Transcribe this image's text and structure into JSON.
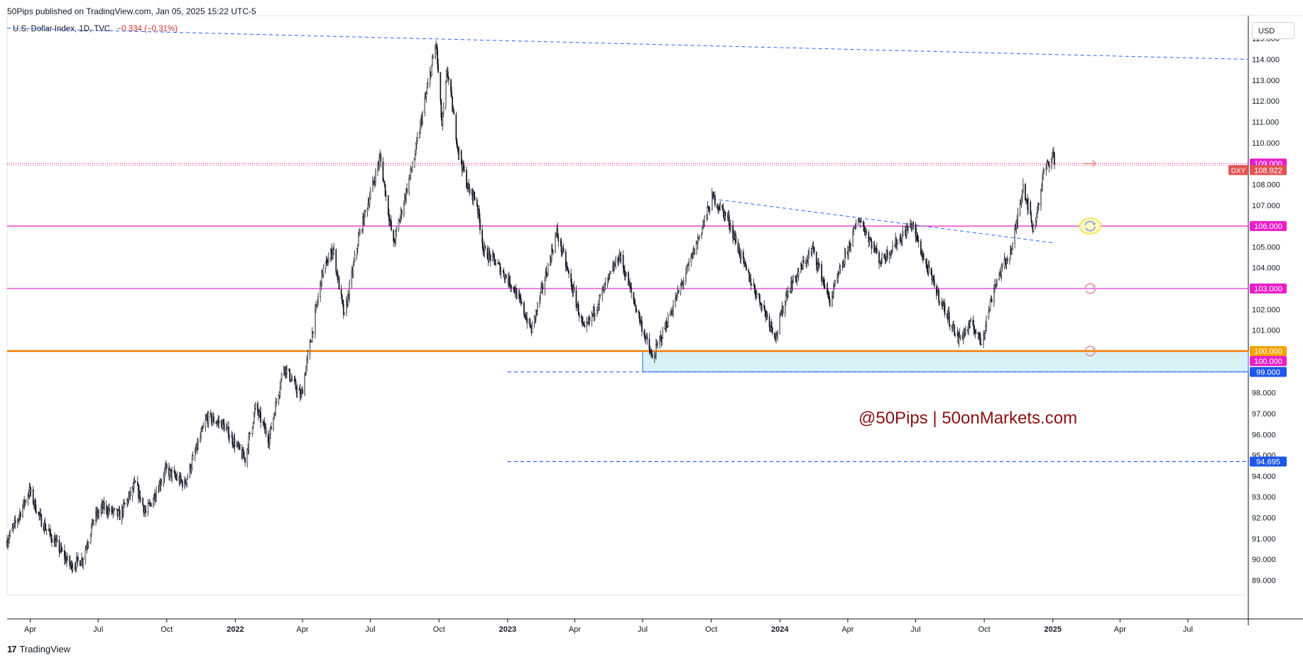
{
  "header": {
    "publisher_line": "50Pips published on TradingView.com, Jan 05, 2025 15:22 UTC-5"
  },
  "legend": {
    "symbol": "U.S. Dollar Index, 1D, TVC",
    "change": "−0.334 (−0.31%)"
  },
  "currency": "USD",
  "watermark": "@50Pips | 50onMarkets.com",
  "footer": {
    "logo_text": "TradingView",
    "logo_mark": "17"
  },
  "colors": {
    "magenta": "#e91ec8",
    "orange": "#f57c00",
    "price_red": "#e25352",
    "blue_dash": "#2962ff",
    "zone_fill": "#d8f1f4",
    "candle": "#131722",
    "text": "#131722"
  },
  "chart_data": {
    "type": "candlestick",
    "title": "U.S. Dollar Index, 1D, TVC",
    "symbol_tag": "DXY",
    "last_price": 108.922,
    "ylim": [
      88.3,
      116.1
    ],
    "y_ticks": [
      89,
      90,
      91,
      92,
      93,
      94,
      95,
      96,
      97,
      98,
      99,
      100,
      101,
      102,
      103,
      104,
      105,
      106,
      107,
      108,
      109,
      110,
      111,
      112,
      113,
      114,
      115
    ],
    "x_range": [
      "2021-03-01",
      "2025-09-20"
    ],
    "x_ticks": [
      {
        "date": "2021-04-01",
        "label": "Apr",
        "bold": false
      },
      {
        "date": "2021-07-01",
        "label": "Jul",
        "bold": false
      },
      {
        "date": "2021-10-01",
        "label": "Oct",
        "bold": false
      },
      {
        "date": "2022-01-01",
        "label": "2022",
        "bold": true
      },
      {
        "date": "2022-04-01",
        "label": "Apr",
        "bold": false
      },
      {
        "date": "2022-07-01",
        "label": "Jul",
        "bold": false
      },
      {
        "date": "2022-10-01",
        "label": "Oct",
        "bold": false
      },
      {
        "date": "2023-01-01",
        "label": "2023",
        "bold": true
      },
      {
        "date": "2023-04-01",
        "label": "Apr",
        "bold": false
      },
      {
        "date": "2023-07-01",
        "label": "Jul",
        "bold": false
      },
      {
        "date": "2023-10-01",
        "label": "Oct",
        "bold": false
      },
      {
        "date": "2024-01-01",
        "label": "2024",
        "bold": true
      },
      {
        "date": "2024-04-01",
        "label": "Apr",
        "bold": false
      },
      {
        "date": "2024-07-01",
        "label": "Jul",
        "bold": false
      },
      {
        "date": "2024-10-01",
        "label": "Oct",
        "bold": false
      },
      {
        "date": "2025-01-01",
        "label": "2025",
        "bold": true
      },
      {
        "date": "2025-04-01",
        "label": "Apr",
        "bold": false
      },
      {
        "date": "2025-07-01",
        "label": "Jul",
        "bold": false
      }
    ],
    "price_path": [
      [
        "2021-03-01",
        90.9
      ],
      [
        "2021-03-12",
        91.7
      ],
      [
        "2021-03-31",
        93.3
      ],
      [
        "2021-04-15",
        91.9
      ],
      [
        "2021-05-01",
        91.0
      ],
      [
        "2021-05-25",
        89.7
      ],
      [
        "2021-06-10",
        90.0
      ],
      [
        "2021-06-25",
        91.9
      ],
      [
        "2021-07-07",
        92.5
      ],
      [
        "2021-07-30",
        92.1
      ],
      [
        "2021-08-20",
        93.6
      ],
      [
        "2021-09-03",
        92.2
      ],
      [
        "2021-09-30",
        94.3
      ],
      [
        "2021-10-25",
        93.6
      ],
      [
        "2021-11-24",
        96.8
      ],
      [
        "2021-12-15",
        96.5
      ],
      [
        "2022-01-14",
        94.8
      ],
      [
        "2022-01-28",
        97.3
      ],
      [
        "2022-02-15",
        95.8
      ],
      [
        "2022-03-07",
        99.3
      ],
      [
        "2022-03-30",
        97.8
      ],
      [
        "2022-04-28",
        103.8
      ],
      [
        "2022-05-12",
        104.9
      ],
      [
        "2022-05-27",
        101.6
      ],
      [
        "2022-06-15",
        105.4
      ],
      [
        "2022-07-14",
        109.3
      ],
      [
        "2022-08-01",
        105.1
      ],
      [
        "2022-08-29",
        109.3
      ],
      [
        "2022-09-27",
        114.8
      ],
      [
        "2022-10-05",
        110.8
      ],
      [
        "2022-10-12",
        113.5
      ],
      [
        "2022-10-27",
        109.6
      ],
      [
        "2022-11-10",
        107.7
      ],
      [
        "2022-11-20",
        107.3
      ],
      [
        "2022-11-30",
        104.8
      ],
      [
        "2022-12-15",
        104.3
      ],
      [
        "2023-01-10",
        103.0
      ],
      [
        "2023-02-02",
        101.0
      ],
      [
        "2023-03-08",
        105.7
      ],
      [
        "2023-04-14",
        100.9
      ],
      [
        "2023-05-31",
        104.6
      ],
      [
        "2023-07-14",
        99.6
      ],
      [
        "2023-08-30",
        103.9
      ],
      [
        "2023-10-03",
        107.4
      ],
      [
        "2023-10-24",
        106.3
      ],
      [
        "2023-11-15",
        104.0
      ],
      [
        "2023-12-27",
        100.7
      ],
      [
        "2024-01-10",
        102.8
      ],
      [
        "2024-02-14",
        104.9
      ],
      [
        "2024-03-08",
        102.4
      ],
      [
        "2024-04-16",
        106.4
      ],
      [
        "2024-05-15",
        104.3
      ],
      [
        "2024-06-26",
        106.1
      ],
      [
        "2024-07-15",
        104.1
      ],
      [
        "2024-08-05",
        102.3
      ],
      [
        "2024-08-27",
        100.6
      ],
      [
        "2024-09-15",
        101.3
      ],
      [
        "2024-09-27",
        100.4
      ],
      [
        "2024-10-15",
        103.2
      ],
      [
        "2024-11-08",
        105.0
      ],
      [
        "2024-11-22",
        108.0
      ],
      [
        "2024-12-06",
        105.8
      ],
      [
        "2024-12-20",
        108.6
      ],
      [
        "2025-01-02",
        109.5
      ],
      [
        "2025-01-03",
        108.922
      ]
    ],
    "horizontal_levels": [
      {
        "price": 109.0,
        "label": "109.000",
        "color": "#e91ec8",
        "style": "dotted",
        "start": "2021-03-01"
      },
      {
        "price": 106.0,
        "label": "106.000",
        "color": "#e91ec8",
        "style": "solid",
        "start": "2021-03-01"
      },
      {
        "price": 103.0,
        "label": "103.000",
        "color": "#e91ec8",
        "style": "solid",
        "start": "2021-03-01"
      },
      {
        "price": 100.0,
        "label": "100.000",
        "color": "#f57c00",
        "style": "solid",
        "start": "2021-03-01"
      },
      {
        "price": 100.0,
        "label": "100.000",
        "color": "#e91ec8",
        "style": "none",
        "start": "2021-03-01"
      },
      {
        "price": 99.0,
        "label": "99.000",
        "color": "#2962ff",
        "style": "dashed",
        "start": "2023-01-01"
      },
      {
        "price": 94.695,
        "label": "94.695",
        "color": "#2962ff",
        "style": "dashed",
        "start": "2023-01-01"
      }
    ],
    "zone": {
      "top": 100.0,
      "bottom": 99.0,
      "start": "2023-07-01",
      "end": "2025-09-20"
    },
    "trendlines": [
      {
        "from": [
          "2021-03-01",
          115.5
        ],
        "to": [
          "2025-09-20",
          114.0
        ],
        "style": "dashed"
      },
      {
        "from": [
          "2023-10-03",
          107.3
        ],
        "to": [
          "2024-12-31",
          105.2
        ],
        "style": "dashed"
      }
    ],
    "markers": [
      {
        "date": "2025-02-20",
        "price": 109.0,
        "type": "arrow-right"
      },
      {
        "date": "2025-02-20",
        "price": 106.0,
        "type": "refresh-highlighted"
      },
      {
        "date": "2025-02-20",
        "price": 103.0,
        "type": "refresh"
      },
      {
        "date": "2025-02-20",
        "price": 100.0,
        "type": "refresh"
      }
    ]
  }
}
